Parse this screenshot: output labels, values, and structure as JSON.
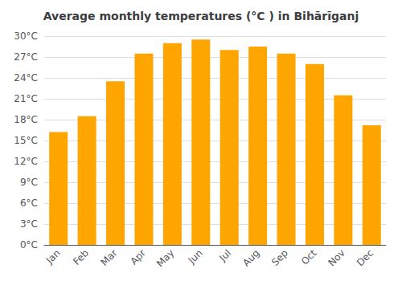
{
  "chart_data": {
    "type": "bar",
    "title": "Average monthly temperatures (°C ) in Bihārīganj",
    "categories": [
      "Jan",
      "Feb",
      "Mar",
      "Apr",
      "May",
      "Jun",
      "Jul",
      "Aug",
      "Sep",
      "Oct",
      "Nov",
      "Dec"
    ],
    "values": [
      16.2,
      18.5,
      23.5,
      27.5,
      29.0,
      29.5,
      28.0,
      28.5,
      27.5,
      26.0,
      21.5,
      17.2
    ],
    "color": "#FFA500",
    "ylim": [
      0,
      30
    ],
    "yticks": [
      {
        "value": 0,
        "label": "0°C"
      },
      {
        "value": 3,
        "label": "3°C"
      },
      {
        "value": 6,
        "label": "6°C"
      },
      {
        "value": 9,
        "label": "9°C"
      },
      {
        "value": 12,
        "label": "12°C"
      },
      {
        "value": 15,
        "label": "15°C"
      },
      {
        "value": 18,
        "label": "18°C"
      },
      {
        "value": 21,
        "label": "21°C"
      },
      {
        "value": 24,
        "label": "24°C"
      },
      {
        "value": 27,
        "label": "27°C"
      },
      {
        "value": 30,
        "label": "30°C"
      }
    ],
    "grid": true
  }
}
